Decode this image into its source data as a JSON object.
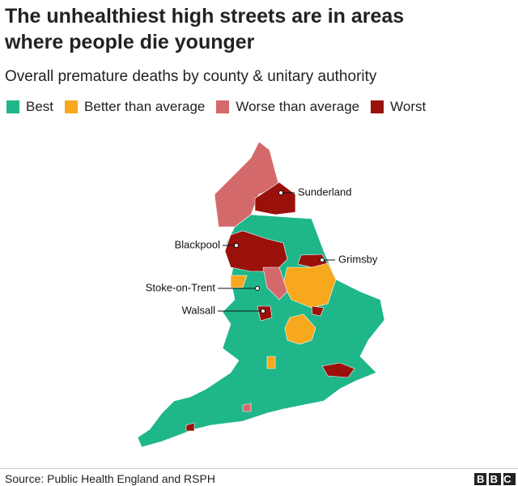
{
  "header": {
    "title_lines": [
      "The unhealthiest high streets are in areas",
      "where people die younger"
    ],
    "subtitle": "Overall premature deaths by county & unitary authority"
  },
  "legend": [
    {
      "label": "Best",
      "color": "#1fb68a"
    },
    {
      "label": "Better than average",
      "color": "#f8a81c"
    },
    {
      "label": "Worse than average",
      "color": "#d4696c"
    },
    {
      "label": "Worst",
      "color": "#9a100b"
    }
  ],
  "places": [
    {
      "label": "Sunderland"
    },
    {
      "label": "Blackpool"
    },
    {
      "label": "Grimsby"
    },
    {
      "label": "Stoke-on-Trent"
    },
    {
      "label": "Walsall"
    }
  ],
  "footer": {
    "source": "Source: Public Health England and RSPH",
    "logo": "BBC"
  }
}
